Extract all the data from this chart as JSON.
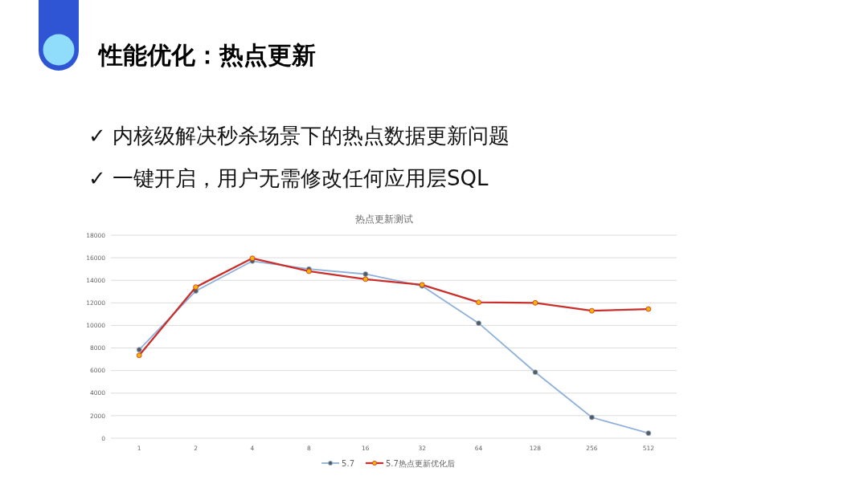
{
  "chart_data": {
    "type": "line",
    "title": "性能优化：热点更新",
    "subtitle": "热点更新测试",
    "annotations": [
      "✓ 内核级解决秒杀场景下的热点数据更新问题",
      "✓ 一键开启，用户无需修改任何应用层SQL"
    ],
    "categories": [
      "1",
      "2",
      "4",
      "8",
      "16",
      "32",
      "64",
      "128",
      "256",
      "512"
    ],
    "series": [
      {
        "name": "5.7",
        "color": "#8eb0da",
        "values": [
          7850,
          13050,
          15700,
          15000,
          14550,
          13500,
          10200,
          5850,
          1850,
          450
        ]
      },
      {
        "name": "5.7热点更新优化后",
        "color": "#c9302c",
        "values": [
          7350,
          13400,
          15950,
          14800,
          14100,
          13600,
          12050,
          12000,
          11300,
          11450
        ]
      }
    ],
    "ylim": [
      0,
      18000
    ],
    "yticks": [
      0,
      2000,
      4000,
      6000,
      8000,
      10000,
      12000,
      14000,
      16000,
      18000
    ],
    "grid": "y",
    "legend": "bottom",
    "marker": "circle",
    "line_style": "solid"
  }
}
